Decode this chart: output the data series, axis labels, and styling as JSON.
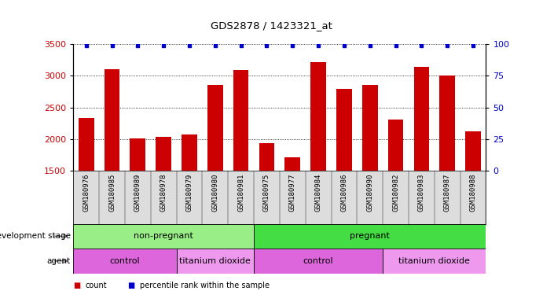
{
  "title": "GDS2878 / 1423321_at",
  "samples": [
    "GSM180976",
    "GSM180985",
    "GSM180989",
    "GSM180978",
    "GSM180979",
    "GSM180980",
    "GSM180981",
    "GSM180975",
    "GSM180977",
    "GSM180984",
    "GSM180986",
    "GSM180990",
    "GSM180982",
    "GSM180983",
    "GSM180987",
    "GSM180988"
  ],
  "counts": [
    2330,
    3110,
    2010,
    2040,
    2080,
    2850,
    3090,
    1940,
    1720,
    3210,
    2790,
    2850,
    2310,
    3140,
    3010,
    2120
  ],
  "bar_color": "#cc0000",
  "dot_color": "#0000cc",
  "ylim_left": [
    1500,
    3500
  ],
  "ylim_right": [
    0,
    100
  ],
  "yticks_left": [
    1500,
    2000,
    2500,
    3000,
    3500
  ],
  "yticks_right": [
    0,
    25,
    50,
    75,
    100
  ],
  "groups": {
    "development_stage": [
      {
        "label": "non-pregnant",
        "start": 0,
        "end": 7,
        "color": "#99ee88"
      },
      {
        "label": "pregnant",
        "start": 7,
        "end": 16,
        "color": "#44dd44"
      }
    ],
    "agent": [
      {
        "label": "control",
        "start": 0,
        "end": 4,
        "color": "#dd66dd"
      },
      {
        "label": "titanium dioxide",
        "start": 4,
        "end": 7,
        "color": "#ee99ee"
      },
      {
        "label": "control",
        "start": 7,
        "end": 12,
        "color": "#dd66dd"
      },
      {
        "label": "titanium dioxide",
        "start": 12,
        "end": 16,
        "color": "#ee99ee"
      }
    ]
  },
  "background_color": "#ffffff",
  "tick_label_color_left": "#cc0000",
  "tick_label_color_right": "#0000cc",
  "xlabel_area_color": "#dddddd",
  "dev_stage_label": "development stage",
  "agent_label": "agent",
  "legend_count_label": "count",
  "legend_percentile_label": "percentile rank within the sample"
}
